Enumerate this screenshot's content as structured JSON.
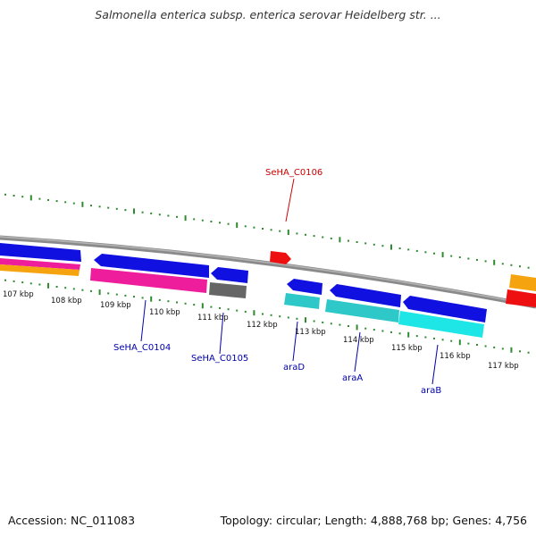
{
  "title": "Salmonella enterica subsp. enterica serovar Heidelberg str. ...",
  "accession": "Accession: NC_011083",
  "summary": "Topology: circular; Length: 4,888,768 bp; Genes: 4,756",
  "colors": {
    "backbone": "#8a8a8a",
    "tick": "#2e8b2e",
    "gene_label": "#0000aa",
    "rna_label": "#cc0000",
    "blue": "#1010e0",
    "magenta": "#ee1d9b",
    "cyan": "#2fc8c8",
    "bright_cyan": "#1ee6e6",
    "gray": "#666666",
    "red": "#ee1010",
    "orange": "#f5a40f"
  },
  "kbp_labels": [
    "107 kbp",
    "108 kbp",
    "109 kbp",
    "110 kbp",
    "111 kbp",
    "112 kbp",
    "113 kbp",
    "114 kbp",
    "115 kbp",
    "116 kbp",
    "117 kbp"
  ],
  "gene_labels": [
    {
      "id": "SeHA_C0106",
      "kind": "rna"
    },
    {
      "id": "SeHA_C0104",
      "kind": "gene"
    },
    {
      "id": "SeHA_C0105",
      "kind": "gene"
    },
    {
      "id": "araD",
      "kind": "gene"
    },
    {
      "id": "araA",
      "kind": "gene"
    },
    {
      "id": "araB",
      "kind": "gene"
    }
  ]
}
